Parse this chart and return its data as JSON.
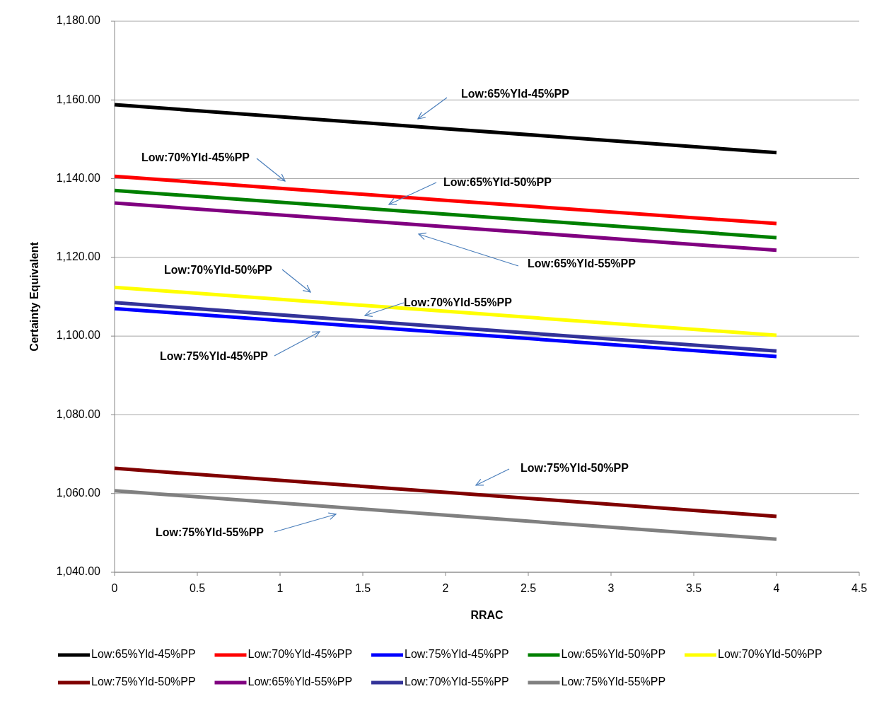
{
  "chart_data": {
    "type": "line",
    "xlabel": "RRAC",
    "ylabel": "Certainty Equivalent",
    "xlim": [
      0,
      4.5
    ],
    "xticks": [
      0,
      0.5,
      1,
      1.5,
      2,
      2.5,
      3,
      3.5,
      4,
      4.5
    ],
    "ylim": [
      1040,
      1180
    ],
    "yticks": [
      {
        "value": 1040,
        "label": "1,040.00"
      },
      {
        "value": 1060,
        "label": "1,060.00"
      },
      {
        "value": 1080,
        "label": "1,080.00"
      },
      {
        "value": 1100,
        "label": "1,100.00"
      },
      {
        "value": 1120,
        "label": "1,120.00"
      },
      {
        "value": 1140,
        "label": "1,140.00"
      },
      {
        "value": 1160,
        "label": "1,160.00"
      },
      {
        "value": 1180,
        "label": "1,180.00"
      }
    ],
    "grid": "y",
    "legend": "bottom",
    "marker": "none",
    "line_style": "solid",
    "x": [
      0,
      2,
      4
    ],
    "series": [
      {
        "name": "Low:65%Yld-45%PP",
        "color": "#000000",
        "values": [
          1158.8,
          1152.7,
          1146.6
        ]
      },
      {
        "name": "Low:70%Yld-45%PP",
        "color": "#ff0000",
        "values": [
          1140.6,
          1134.5,
          1128.6
        ]
      },
      {
        "name": "Low:75%Yld-45%PP",
        "color": "#0000ff",
        "values": [
          1107.0,
          1100.9,
          1094.8
        ]
      },
      {
        "name": "Low:65%Yld-50%PP",
        "color": "#008000",
        "values": [
          1137.0,
          1131.0,
          1125.0
        ]
      },
      {
        "name": "Low:70%Yld-50%PP",
        "color": "#ffff00",
        "values": [
          1112.4,
          1106.3,
          1100.2
        ]
      },
      {
        "name": "Low:75%Yld-50%PP",
        "color": "#800000",
        "values": [
          1066.4,
          1060.3,
          1054.2
        ]
      },
      {
        "name": "Low:65%Yld-55%PP",
        "color": "#800080",
        "values": [
          1133.8,
          1127.8,
          1121.8
        ]
      },
      {
        "name": "Low:70%Yld-55%PP",
        "color": "#333399",
        "values": [
          1108.5,
          1102.3,
          1096.2
        ]
      },
      {
        "name": "Low:75%Yld-55%PP",
        "color": "#808080",
        "values": [
          1060.7,
          1054.5,
          1048.4
        ]
      }
    ],
    "annotations": [
      "Low:65%Yld-45%PP",
      "Low:70%Yld-45%PP",
      "Low:65%Yld-50%PP",
      "Low:65%Yld-55%PP",
      "Low:70%Yld-50%PP",
      "Low:70%Yld-55%PP",
      "Low:75%Yld-45%PP",
      "Low:75%Yld-50%PP",
      "Low:75%Yld-55%PP"
    ]
  }
}
